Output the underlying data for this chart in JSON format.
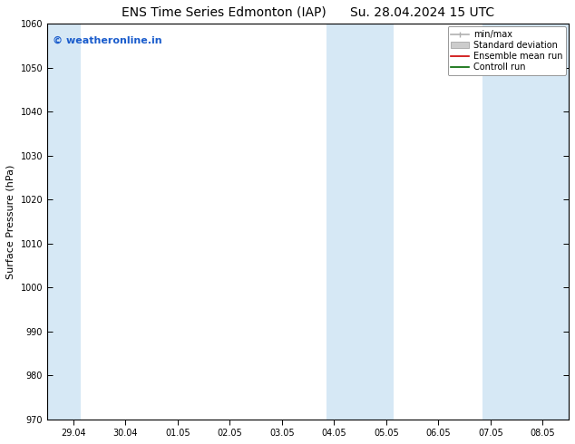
{
  "title_left": "ENS Time Series Edmonton (IAP)",
  "title_right": "Su. 28.04.2024 15 UTC",
  "ylabel": "Surface Pressure (hPa)",
  "ylim": [
    970,
    1060
  ],
  "yticks": [
    970,
    980,
    990,
    1000,
    1010,
    1020,
    1030,
    1040,
    1050,
    1060
  ],
  "xtick_labels": [
    "29.04",
    "30.04",
    "01.05",
    "02.05",
    "03.05",
    "04.05",
    "05.05",
    "06.05",
    "07.05",
    "08.05"
  ],
  "xtick_positions": [
    0,
    1,
    2,
    3,
    4,
    5,
    6,
    7,
    8,
    9
  ],
  "xlim": [
    -0.5,
    9.5
  ],
  "shaded_bands": [
    {
      "x_start": -0.5,
      "x_end": 0.15
    },
    {
      "x_start": 4.85,
      "x_end": 6.15
    },
    {
      "x_start": 7.85,
      "x_end": 9.5
    }
  ],
  "shade_color": "#d6e8f5",
  "watermark_text": "© weatheronline.in",
  "watermark_color": "#1a5ccc",
  "legend_entries": [
    {
      "label": "min/max",
      "color": "#b0b0b0",
      "lw": 1.2,
      "type": "line_with_cap"
    },
    {
      "label": "Standard deviation",
      "color": "#cccccc",
      "lw": 5,
      "type": "band"
    },
    {
      "label": "Ensemble mean run",
      "color": "#cc0000",
      "lw": 1.2,
      "type": "line"
    },
    {
      "label": "Controll run",
      "color": "#006600",
      "lw": 1.2,
      "type": "line"
    }
  ],
  "bg_color": "#ffffff",
  "axes_bg_color": "#ffffff",
  "title_fontsize": 10,
  "tick_fontsize": 7,
  "ylabel_fontsize": 8,
  "watermark_fontsize": 8,
  "legend_fontsize": 7
}
